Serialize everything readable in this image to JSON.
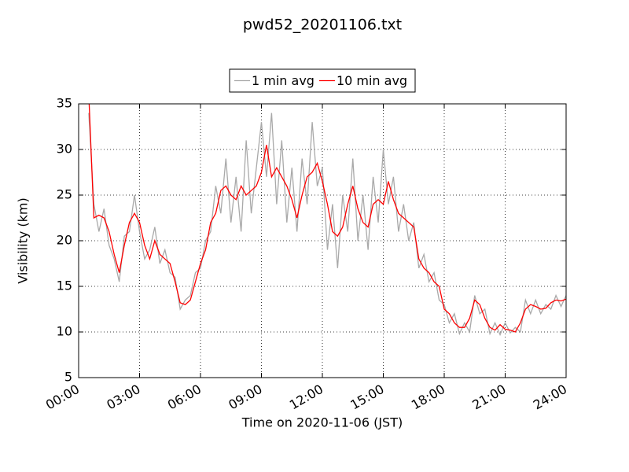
{
  "chart_data": {
    "type": "line",
    "title": "pwd52_20201106.txt",
    "x_label": "Time on 2020-11-06 (JST)",
    "y_label": "Visibility (km)",
    "x": [
      0.5,
      0.75,
      1,
      1.25,
      1.5,
      1.75,
      2,
      2.25,
      2.5,
      2.75,
      3,
      3.25,
      3.5,
      3.75,
      4,
      4.25,
      4.5,
      4.75,
      5,
      5.25,
      5.5,
      5.75,
      6,
      6.25,
      6.5,
      6.75,
      7,
      7.25,
      7.5,
      7.75,
      8,
      8.25,
      8.5,
      8.75,
      9,
      9.25,
      9.5,
      9.75,
      10,
      10.25,
      10.5,
      10.75,
      11,
      11.25,
      11.5,
      11.75,
      12,
      12.25,
      12.5,
      12.75,
      13,
      13.25,
      13.5,
      13.75,
      14,
      14.25,
      14.5,
      14.75,
      15,
      15.25,
      15.5,
      15.75,
      16,
      16.25,
      16.5,
      16.75,
      17,
      17.25,
      17.5,
      17.75,
      18,
      18.25,
      18.5,
      18.75,
      19,
      19.25,
      19.5,
      19.75,
      20,
      20.25,
      20.5,
      20.75,
      21,
      21.25,
      21.5,
      21.75,
      22,
      22.25,
      22.5,
      22.75,
      23,
      23.25,
      23.5,
      23.75,
      24
    ],
    "series": [
      {
        "name": "1 min avg",
        "color": "#a9a9a9",
        "values": [
          34,
          24,
          21,
          23.5,
          19.5,
          18,
          15.5,
          20.5,
          21,
          25,
          21,
          18,
          19,
          21.5,
          17.5,
          19,
          16.5,
          16,
          12.5,
          13.5,
          14,
          16.5,
          17,
          20,
          21,
          26,
          23,
          29,
          22,
          27,
          21,
          31,
          23,
          28,
          33,
          27,
          34,
          24,
          31,
          22,
          28,
          21,
          29,
          24,
          33,
          26,
          28,
          19,
          24,
          17,
          25,
          21,
          29,
          20,
          25,
          19,
          27,
          22,
          30,
          24,
          27,
          21,
          24,
          20,
          22,
          17,
          18.5,
          15.5,
          16.5,
          13.5,
          13,
          11,
          12,
          9.8,
          11,
          10,
          14,
          12,
          12.5,
          9.8,
          11,
          9.7,
          11,
          9.9,
          10.5,
          10,
          13.5,
          12,
          13.5,
          12,
          13,
          12.5,
          14,
          12.8,
          14
        ]
      },
      {
        "name": "10 min avg",
        "color": "#ff0000",
        "values": [
          36,
          22.5,
          22.8,
          22.5,
          21,
          18.5,
          16.5,
          19.5,
          22,
          23,
          22,
          19.5,
          18,
          20,
          18.5,
          18,
          17.5,
          15.5,
          13.2,
          13,
          13.5,
          15.5,
          17.5,
          19,
          22,
          23,
          25.5,
          26,
          25,
          24.5,
          26,
          25,
          25.5,
          26,
          27.5,
          30.5,
          27,
          28,
          27,
          26,
          24.5,
          22.5,
          25,
          27,
          27.5,
          28.5,
          26.5,
          24,
          21,
          20.5,
          21.5,
          24,
          26,
          23.5,
          22,
          21.5,
          24,
          24.5,
          24,
          26.5,
          24.5,
          23,
          22.5,
          22,
          21.5,
          18,
          17,
          16.5,
          15.5,
          15,
          12.5,
          12,
          11,
          10.5,
          10.5,
          11.5,
          13.5,
          13,
          11.5,
          10.5,
          10.2,
          10.8,
          10.3,
          10.2,
          10,
          11,
          12.5,
          13,
          12.8,
          12.5,
          12.6,
          13.2,
          13.5,
          13.4,
          13.6
        ]
      }
    ],
    "xlim": [
      0,
      24
    ],
    "xticks": [
      {
        "value": 0,
        "label": "00:00"
      },
      {
        "value": 3,
        "label": "03:00"
      },
      {
        "value": 6,
        "label": "06:00"
      },
      {
        "value": 9,
        "label": "09:00"
      },
      {
        "value": 12,
        "label": "12:00"
      },
      {
        "value": 15,
        "label": "15:00"
      },
      {
        "value": 18,
        "label": "18:00"
      },
      {
        "value": 21,
        "label": "21:00"
      },
      {
        "value": 24,
        "label": "24:00"
      }
    ],
    "ylim": [
      5,
      35
    ],
    "yticks": [
      5,
      10,
      15,
      20,
      25,
      30,
      35
    ],
    "grid": true,
    "legend": "top"
  }
}
